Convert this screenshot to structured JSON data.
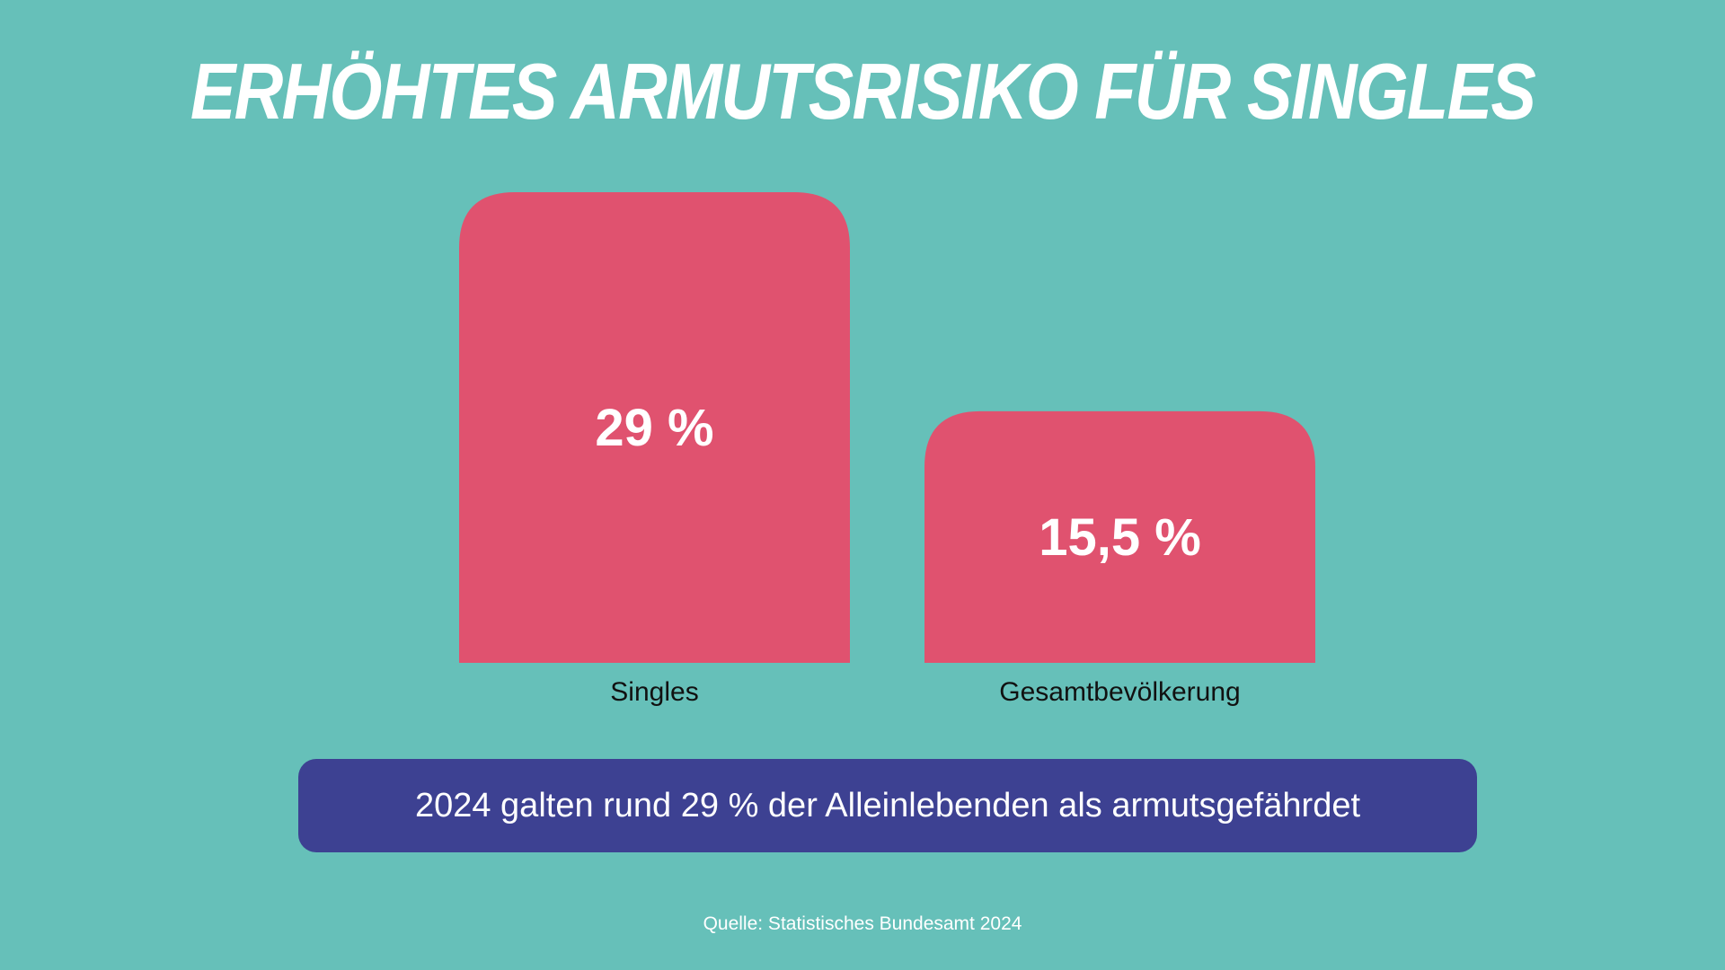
{
  "title": "ERHÖHTES ARMUTSRISIKO FÜR SINGLES",
  "colors": {
    "background": "#66c0b9",
    "bar": "#e0526f",
    "banner": "#3d4192",
    "text_light": "#ffffff",
    "text_dark": "#111111"
  },
  "chart_data": {
    "type": "bar",
    "categories": [
      "Singles",
      "Gesamtbevölkerung"
    ],
    "values": [
      29,
      15.5
    ],
    "value_labels": [
      "29 %",
      "15,5 %"
    ],
    "unit": "%",
    "ylim": [
      0,
      29
    ],
    "grid": false,
    "title": "ERHÖHTES ARMUTSRISIKO FÜR SINGLES"
  },
  "banner": {
    "text": "2024 galten rund 29 % der Alleinlebenden als armutsgefährdet"
  },
  "source": "Quelle: Statistisches Bundesamt 2024"
}
